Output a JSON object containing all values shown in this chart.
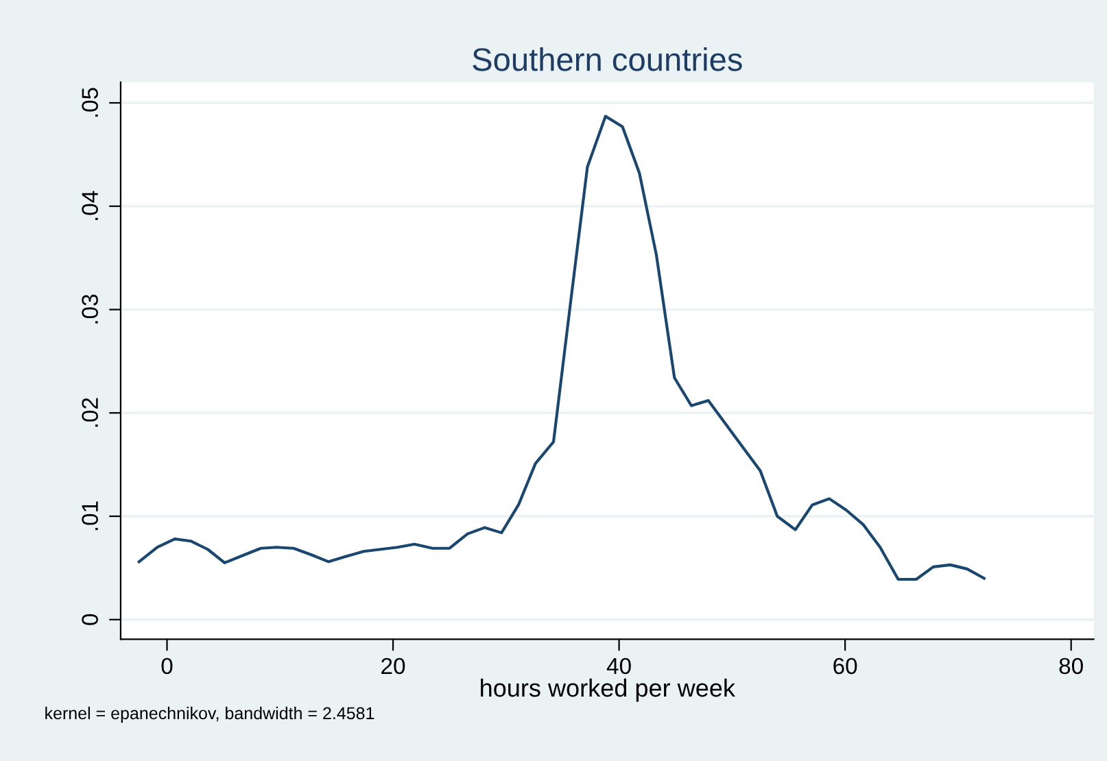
{
  "chart_data": {
    "type": "line",
    "title": "Southern countries",
    "xlabel": "hours worked per week",
    "annotations": [
      "kernel = epanechnikov, bandwidth = 2.4581"
    ],
    "series": [
      {
        "color": "#1a476f",
        "x": [
          -2.47,
          -0.85,
          0.69,
          2.1,
          3.6,
          5.1,
          6.7,
          8.3,
          9.7,
          11.2,
          12.7,
          14.3,
          15.8,
          17.4,
          18.9,
          20.4,
          21.9,
          23.5,
          25.0,
          26.6,
          28.1,
          29.6,
          31.1,
          32.6,
          34.2,
          35.7,
          37.2,
          38.8,
          40.3,
          41.8,
          43.3,
          44.9,
          46.4,
          47.9,
          50.8,
          52.5,
          54.0,
          55.6,
          57.1,
          58.6,
          60.1,
          61.6,
          63.1,
          64.7,
          66.3,
          67.8,
          69.3,
          70.8,
          72.3
        ],
        "values": [
          0.0056,
          0.007,
          0.0078,
          0.0076,
          0.0068,
          0.0055,
          0.0062,
          0.0069,
          0.007,
          0.0069,
          0.0063,
          0.0056,
          0.0061,
          0.0066,
          0.0068,
          0.007,
          0.0073,
          0.0069,
          0.0069,
          0.0083,
          0.0089,
          0.0084,
          0.0111,
          0.0151,
          0.0172,
          0.0306,
          0.0438,
          0.0487,
          0.0477,
          0.0432,
          0.0353,
          0.0234,
          0.0207,
          0.0212,
          0.0169,
          0.0144,
          0.01,
          0.0087,
          0.0111,
          0.0117,
          0.0106,
          0.0092,
          0.007,
          0.0039,
          0.0039,
          0.0051,
          0.0053,
          0.0049,
          0.004
        ]
      }
    ],
    "xlim": [
      -4.1,
      82.0
    ],
    "ylim": [
      -0.0019,
      0.052
    ],
    "xticks": [
      0,
      20,
      40,
      60,
      80
    ],
    "yticks": [
      {
        "value": 0,
        "label": "0"
      },
      {
        "value": 0.01,
        "label": ".01"
      },
      {
        "value": 0.02,
        "label": ".02"
      },
      {
        "value": 0.03,
        "label": ".03"
      },
      {
        "value": 0.04,
        "label": ".04"
      },
      {
        "value": 0.05,
        "label": ".05"
      }
    ],
    "grid": "y",
    "marker": "none",
    "line_style": "solid"
  }
}
